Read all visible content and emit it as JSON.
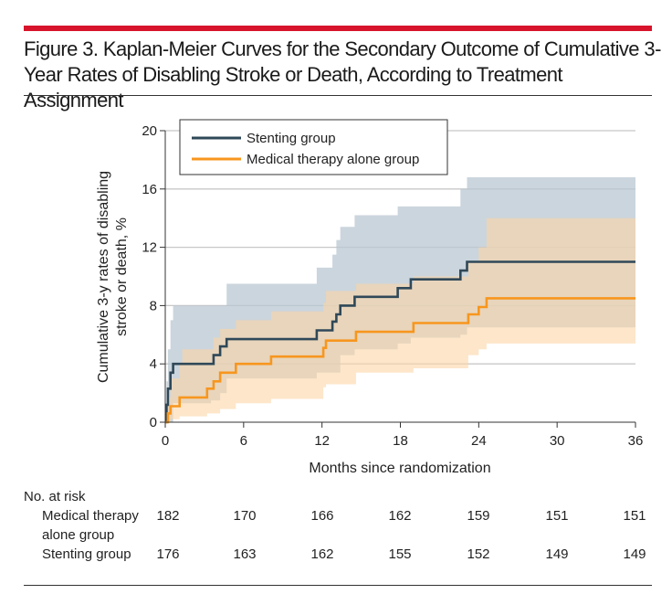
{
  "figure": {
    "title": "Figure 3. Kaplan-Meier Curves for the Secondary Outcome of Cumulative 3-Year Rates of Disabling Stroke or Death, According to Treatment Assignment"
  },
  "colors": {
    "accent_bar": "#d7142b",
    "stenting": "#2f4858",
    "stenting_band": "#b9c7d1",
    "medical": "#f7961e",
    "medical_band": "#fbd5a6",
    "grid": "#c8c8c8"
  },
  "chart_data": {
    "type": "line",
    "title": "Kaplan-Meier Curves for the Secondary Outcome of Cumulative 3-Year Rates of Disabling Stroke or Death",
    "xlabel": "Months since randomization",
    "ylabel_line1": "Cumulative 3-y rates of disabling",
    "ylabel_line2": "stroke or death, %",
    "xlim": [
      0,
      36
    ],
    "ylim": [
      0,
      20
    ],
    "xticks": [
      0,
      6,
      12,
      18,
      24,
      30,
      36
    ],
    "yticks": [
      0,
      4,
      8,
      12,
      16,
      20
    ],
    "legend_position": "top-left",
    "series": [
      {
        "name": "Stenting group",
        "color": "#2f4858",
        "band_color": "#b9c7d1",
        "step": [
          [
            0,
            0
          ],
          [
            0.1,
            1.2
          ],
          [
            0.2,
            2.3
          ],
          [
            0.4,
            3.4
          ],
          [
            0.6,
            4.0
          ],
          [
            3.5,
            4.0
          ],
          [
            3.7,
            4.6
          ],
          [
            4.2,
            5.2
          ],
          [
            4.7,
            5.7
          ],
          [
            11.6,
            5.7
          ],
          [
            11.6,
            6.3
          ],
          [
            12.7,
            6.3
          ],
          [
            12.8,
            6.9
          ],
          [
            13.1,
            7.4
          ],
          [
            13.4,
            8.0
          ],
          [
            14.4,
            8.0
          ],
          [
            14.5,
            8.6
          ],
          [
            17.6,
            8.6
          ],
          [
            17.8,
            9.2
          ],
          [
            18.6,
            9.2
          ],
          [
            18.8,
            9.8
          ],
          [
            22.4,
            9.8
          ],
          [
            22.6,
            10.4
          ],
          [
            23.0,
            10.4
          ],
          [
            23.1,
            11.0
          ],
          [
            36,
            11.0
          ]
        ],
        "upper": [
          [
            0,
            0
          ],
          [
            0.1,
            2.8
          ],
          [
            0.2,
            5.0
          ],
          [
            0.4,
            7.0
          ],
          [
            0.6,
            8.0
          ],
          [
            4.2,
            8.0
          ],
          [
            4.7,
            9.5
          ],
          [
            11.6,
            9.5
          ],
          [
            11.6,
            10.6
          ],
          [
            12.7,
            10.6
          ],
          [
            12.8,
            11.5
          ],
          [
            13.1,
            12.5
          ],
          [
            13.4,
            13.4
          ],
          [
            14.4,
            13.4
          ],
          [
            14.5,
            14.2
          ],
          [
            17.6,
            14.2
          ],
          [
            17.8,
            14.8
          ],
          [
            22.4,
            14.8
          ],
          [
            22.6,
            16.0
          ],
          [
            23.1,
            16.8
          ],
          [
            36,
            16.8
          ]
        ],
        "lower": [
          [
            0,
            0
          ],
          [
            0.6,
            1.3
          ],
          [
            3.5,
            1.5
          ],
          [
            4.2,
            2.0
          ],
          [
            4.7,
            3.0
          ],
          [
            11.6,
            3.0
          ],
          [
            11.6,
            3.4
          ],
          [
            13.4,
            3.6
          ],
          [
            13.4,
            4.6
          ],
          [
            14.5,
            5.0
          ],
          [
            17.8,
            5.4
          ],
          [
            18.8,
            5.8
          ],
          [
            22.6,
            6.0
          ],
          [
            23.1,
            6.5
          ],
          [
            36,
            6.5
          ]
        ]
      },
      {
        "name": "Medical therapy alone group",
        "color": "#f7961e",
        "band_color": "#fbd5a6",
        "step": [
          [
            0,
            0
          ],
          [
            0.2,
            0.6
          ],
          [
            0.4,
            1.1
          ],
          [
            1.0,
            1.1
          ],
          [
            1.1,
            1.7
          ],
          [
            3.1,
            1.7
          ],
          [
            3.2,
            2.3
          ],
          [
            3.6,
            2.3
          ],
          [
            3.7,
            2.8
          ],
          [
            4.1,
            2.8
          ],
          [
            4.2,
            3.4
          ],
          [
            5.3,
            3.4
          ],
          [
            5.4,
            4.0
          ],
          [
            8.0,
            4.0
          ],
          [
            8.1,
            4.5
          ],
          [
            12.0,
            4.5
          ],
          [
            12.1,
            5.1
          ],
          [
            12.2,
            5.1
          ],
          [
            12.3,
            5.6
          ],
          [
            14.5,
            5.6
          ],
          [
            14.6,
            6.2
          ],
          [
            18.9,
            6.2
          ],
          [
            19.0,
            6.8
          ],
          [
            23.1,
            6.8
          ],
          [
            23.2,
            7.4
          ],
          [
            23.9,
            7.4
          ],
          [
            24.0,
            7.9
          ],
          [
            24.5,
            7.9
          ],
          [
            24.6,
            8.5
          ],
          [
            36,
            8.5
          ]
        ],
        "upper": [
          [
            0,
            0
          ],
          [
            0.2,
            1.7
          ],
          [
            0.4,
            3.0
          ],
          [
            1.1,
            4.0
          ],
          [
            1.3,
            5.0
          ],
          [
            3.2,
            5.0
          ],
          [
            3.7,
            5.8
          ],
          [
            4.2,
            6.4
          ],
          [
            5.4,
            7.0
          ],
          [
            8.1,
            7.6
          ],
          [
            12.1,
            8.2
          ],
          [
            12.3,
            9.0
          ],
          [
            14.6,
            9.5
          ],
          [
            19.0,
            10.0
          ],
          [
            23.2,
            11.0
          ],
          [
            24.0,
            12.0
          ],
          [
            24.6,
            14.0
          ],
          [
            36,
            14.0
          ]
        ],
        "lower": [
          [
            0,
            0
          ],
          [
            0.4,
            0.2
          ],
          [
            1.1,
            0.4
          ],
          [
            3.2,
            0.6
          ],
          [
            4.2,
            0.9
          ],
          [
            5.4,
            1.3
          ],
          [
            8.1,
            1.6
          ],
          [
            12.1,
            2.4
          ],
          [
            12.3,
            2.6
          ],
          [
            14.6,
            3.4
          ],
          [
            19.0,
            3.7
          ],
          [
            23.2,
            4.6
          ],
          [
            24.0,
            5.0
          ],
          [
            24.6,
            5.4
          ],
          [
            36,
            5.4
          ]
        ]
      }
    ]
  },
  "risk_table": {
    "header": "No. at risk",
    "rows": [
      {
        "label_line1": "Medical therapy",
        "label_line2": "alone group",
        "values": [
          "182",
          "170",
          "166",
          "162",
          "159",
          "151",
          "151"
        ]
      },
      {
        "label_line1": "Stenting group",
        "label_line2": "",
        "values": [
          "176",
          "163",
          "162",
          "155",
          "152",
          "149",
          "149"
        ]
      }
    ]
  }
}
